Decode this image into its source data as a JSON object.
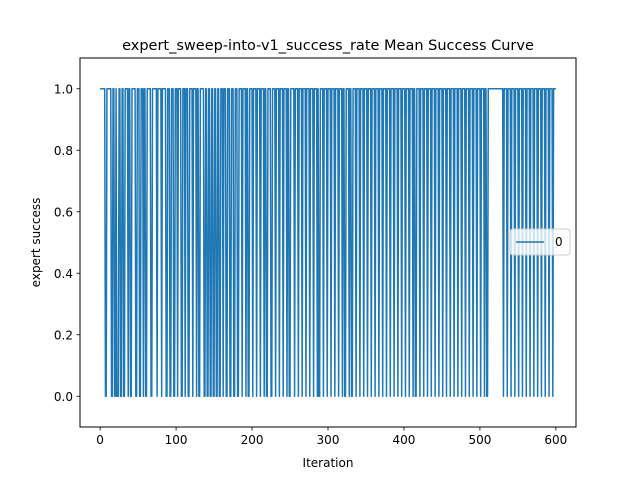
{
  "chart_data": {
    "type": "line",
    "title": "expert_sweep-into-v1_success_rate Mean Success Curve",
    "xlabel": "Iteration",
    "ylabel": "expert success",
    "xlim": [
      -26.5,
      626.5
    ],
    "ylim": [
      -0.1,
      1.1
    ],
    "xticks": [
      0,
      100,
      200,
      300,
      400,
      500,
      600
    ],
    "yticks": [
      0.0,
      0.2,
      0.4,
      0.6,
      0.8,
      1.0
    ],
    "ytick_labels": [
      "0.0",
      "0.2",
      "0.4",
      "0.6",
      "0.8",
      "1.0"
    ],
    "grid": false,
    "legend": {
      "position": "center-right",
      "entries": [
        "0"
      ]
    },
    "series": [
      {
        "name": "0",
        "color": "#1f77b4",
        "x_start": 0,
        "x_end": 600,
        "default_y": 1,
        "zero_iterations": [
          7,
          8,
          15,
          16,
          19,
          20,
          22,
          23,
          24,
          27,
          28,
          31,
          32,
          37,
          40,
          41,
          47,
          48,
          52,
          53,
          57,
          60,
          61,
          67,
          68,
          75,
          81,
          87,
          88,
          92,
          93,
          97,
          98,
          102,
          107,
          108,
          112,
          116,
          117,
          122,
          127,
          130,
          131,
          137,
          138,
          141,
          142,
          145,
          146,
          149,
          150,
          153,
          154,
          157,
          158,
          162,
          166,
          167,
          171,
          172,
          176,
          177,
          181,
          182,
          187,
          192,
          195,
          196,
          201,
          206,
          211,
          216,
          219,
          220,
          225,
          226,
          231,
          236,
          241,
          246,
          249,
          250,
          256,
          261,
          266,
          271,
          276,
          281,
          286,
          288,
          289,
          294,
          299,
          304,
          309,
          314,
          319,
          322,
          323,
          328,
          331,
          332,
          337,
          342,
          347,
          352,
          357,
          362,
          367,
          372,
          377,
          382,
          387,
          392,
          397,
          402,
          407,
          412,
          415,
          416,
          421,
          426,
          431,
          436,
          441,
          446,
          451,
          456,
          461,
          466,
          471,
          476,
          481,
          486,
          491,
          496,
          501,
          506,
          509,
          510,
          531,
          536,
          541,
          546,
          551,
          556,
          561,
          566,
          571,
          576,
          581,
          586,
          591,
          596
        ]
      }
    ]
  }
}
